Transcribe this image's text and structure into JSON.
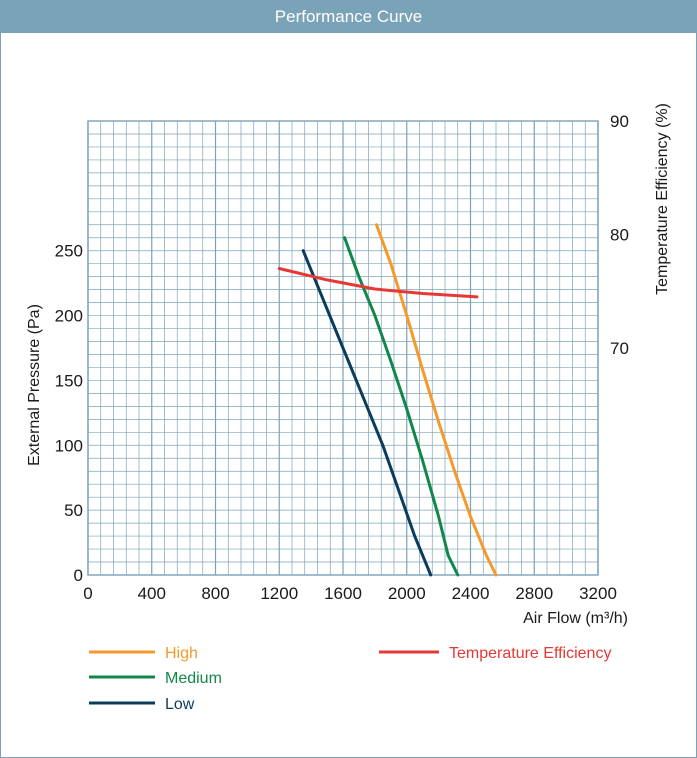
{
  "header": {
    "title": "Performance Curve"
  },
  "chart_data": {
    "type": "line",
    "title": "Performance Curve",
    "xlabel": "Air Flow (m³/h)",
    "ylabel": "External Pressure (Pa)",
    "y2label": "Temperature Efficiency (%)",
    "xlim": [
      0,
      3200
    ],
    "ylim": [
      0,
      350
    ],
    "y2lim": [
      50,
      90
    ],
    "x_ticks": [
      0,
      400,
      800,
      1200,
      1600,
      2000,
      2400,
      2800,
      3200
    ],
    "x_tick_labels": [
      "0",
      "400",
      "800",
      "1200",
      "1600",
      "2000",
      "2400",
      "2800",
      "3200"
    ],
    "y_ticks": [
      0,
      50,
      100,
      150,
      200,
      250
    ],
    "y_tick_labels": [
      "0",
      "50",
      "100",
      "150",
      "200",
      "250"
    ],
    "y2_ticks": [
      70,
      80,
      90
    ],
    "y2_tick_labels": [
      "70",
      "80",
      "90"
    ],
    "grid": true,
    "series": [
      {
        "name": "High",
        "axis": "y",
        "color": "#f59a2a",
        "points": [
          [
            1810,
            270
          ],
          [
            1900,
            240
          ],
          [
            2000,
            200
          ],
          [
            2100,
            158
          ],
          [
            2200,
            118
          ],
          [
            2300,
            80
          ],
          [
            2400,
            45
          ],
          [
            2500,
            15
          ],
          [
            2560,
            0
          ]
        ]
      },
      {
        "name": "Medium",
        "axis": "y",
        "color": "#12874a",
        "points": [
          [
            1610,
            260
          ],
          [
            1700,
            230
          ],
          [
            1800,
            200
          ],
          [
            1900,
            165
          ],
          [
            2000,
            128
          ],
          [
            2100,
            88
          ],
          [
            2200,
            45
          ],
          [
            2260,
            15
          ],
          [
            2320,
            0
          ]
        ]
      },
      {
        "name": "Low",
        "axis": "y",
        "color": "#0b3c5d",
        "points": [
          [
            1350,
            250
          ],
          [
            1450,
            220
          ],
          [
            1550,
            190
          ],
          [
            1650,
            160
          ],
          [
            1750,
            130
          ],
          [
            1850,
            100
          ],
          [
            1950,
            65
          ],
          [
            2050,
            30
          ],
          [
            2150,
            0
          ]
        ]
      },
      {
        "name": "Temperature Efficiency",
        "axis": "y2",
        "color": "#e53935",
        "points": [
          [
            1200,
            77
          ],
          [
            1500,
            76
          ],
          [
            1800,
            75.2
          ],
          [
            2100,
            74.8
          ],
          [
            2440,
            74.5
          ]
        ]
      }
    ],
    "legend": [
      {
        "label": "High",
        "color": "#f59a2a"
      },
      {
        "label": "Medium",
        "color": "#12874a"
      },
      {
        "label": "Low",
        "color": "#0b3c5d"
      },
      {
        "label": "Temperature Efficiency",
        "color": "#e53935"
      }
    ],
    "grid_color": "#7aa3b8",
    "frame_color": "#7aa3b8"
  }
}
